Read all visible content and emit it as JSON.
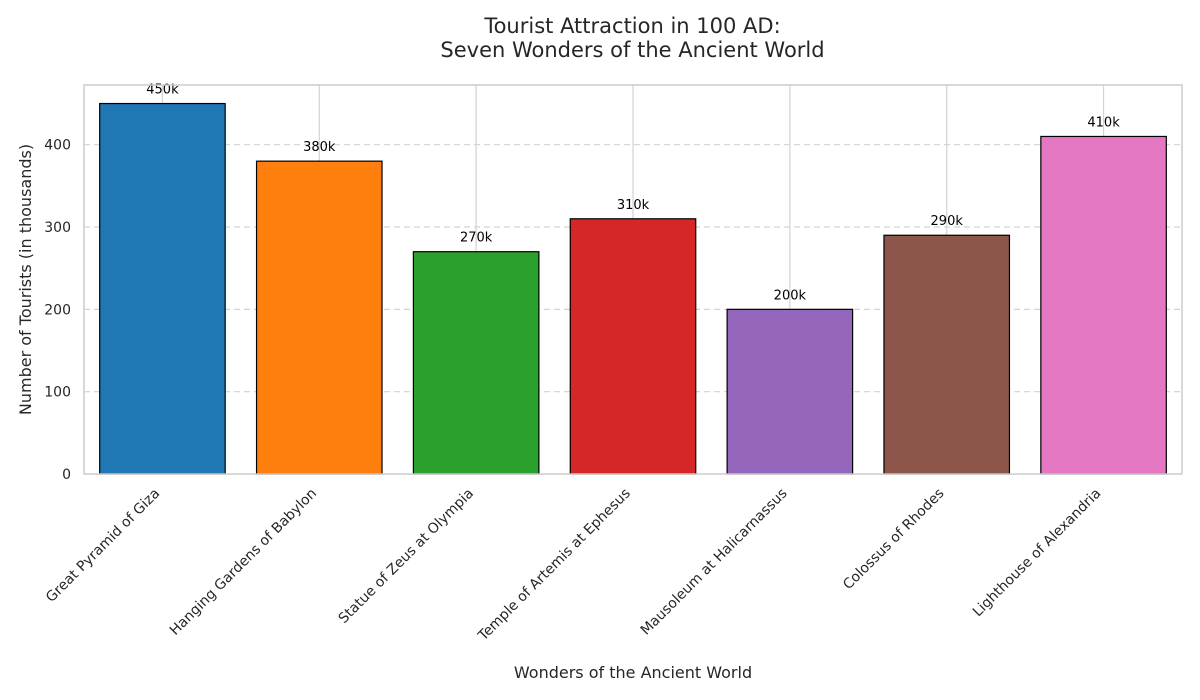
{
  "chart_data": {
    "type": "bar",
    "title_lines": [
      "Tourist Attraction in 100 AD:",
      "Seven Wonders of the Ancient World"
    ],
    "xlabel": "Wonders of the Ancient World",
    "ylabel": "Number of Tourists (in thousands)",
    "categories": [
      "Great Pyramid of Giza",
      "Hanging Gardens of Babylon",
      "Statue of Zeus at Olympia",
      "Temple of Artemis at Ephesus",
      "Mausoleum at Halicarnassus",
      "Colossus of Rhodes",
      "Lighthouse of Alexandria"
    ],
    "values": [
      450,
      380,
      270,
      310,
      200,
      290,
      410
    ],
    "data_labels": [
      "450k",
      "380k",
      "270k",
      "310k",
      "200k",
      "290k",
      "410k"
    ],
    "colors": [
      "#1f77b4",
      "#ff7f0e",
      "#2ca02c",
      "#d62728",
      "#9467bd",
      "#8c564b",
      "#e377c2"
    ],
    "yticks": [
      0,
      100,
      200,
      300,
      400
    ],
    "ylim": [
      0,
      472.5
    ],
    "grid": true
  }
}
